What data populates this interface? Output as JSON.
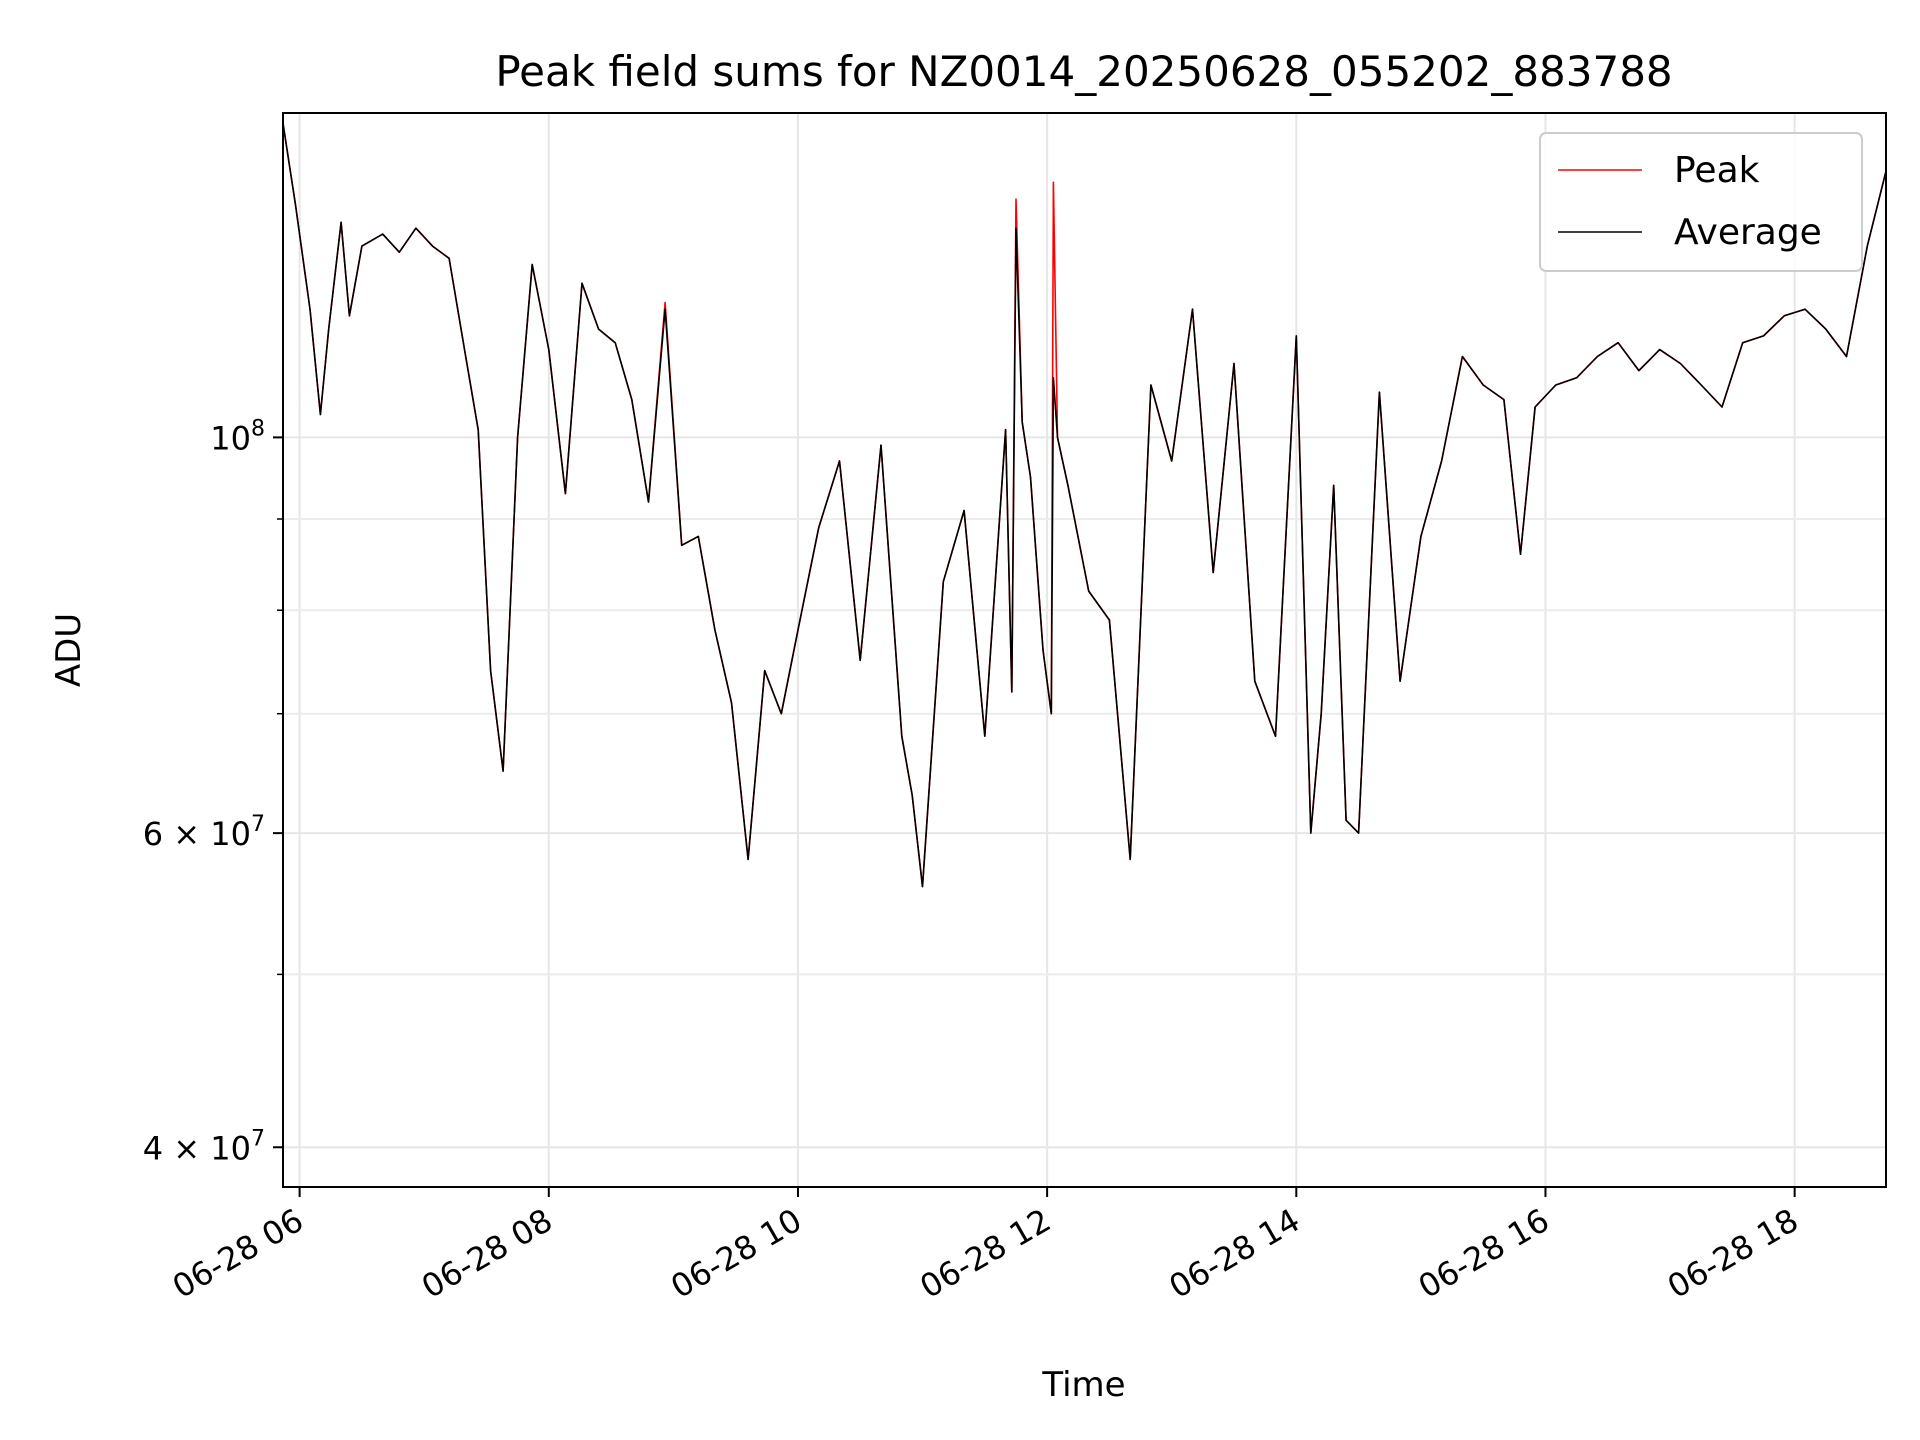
{
  "chart_data": {
    "type": "line",
    "title": "Peak field sums for NZ0014_20250628_055202_883788",
    "xlabel": "Time",
    "ylabel": "ADU",
    "yscale": "log",
    "ylim": [
      38000000,
      152000000
    ],
    "xlim": [
      "2025-06-28 05:52",
      "2025-06-28 18:44"
    ],
    "grid": true,
    "legend_position": "upper right",
    "x_tick_labels": [
      "06-28 06",
      "06-28 08",
      "06-28 10",
      "06-28 12",
      "06-28 14",
      "06-28 16",
      "06-28 18"
    ],
    "y_major_tick_labels": [
      {
        "base": "10",
        "exp": "8"
      },
      {
        "base": "6 × 10",
        "exp": "7"
      },
      {
        "base": "4 × 10",
        "exp": "7"
      }
    ],
    "x": [
      "2025-06-28 05:52",
      "2025-06-28 05:58",
      "2025-06-28 06:05",
      "2025-06-28 06:10",
      "2025-06-28 06:14",
      "2025-06-28 06:20",
      "2025-06-28 06:24",
      "2025-06-28 06:30",
      "2025-06-28 06:40",
      "2025-06-28 06:48",
      "2025-06-28 06:56",
      "2025-06-28 07:04",
      "2025-06-28 07:12",
      "2025-06-28 07:20",
      "2025-06-28 07:26",
      "2025-06-28 07:32",
      "2025-06-28 07:38",
      "2025-06-28 07:45",
      "2025-06-28 07:52",
      "2025-06-28 08:00",
      "2025-06-28 08:08",
      "2025-06-28 08:16",
      "2025-06-28 08:24",
      "2025-06-28 08:32",
      "2025-06-28 08:40",
      "2025-06-28 08:48",
      "2025-06-28 08:56",
      "2025-06-28 09:04",
      "2025-06-28 09:12",
      "2025-06-28 09:20",
      "2025-06-28 09:28",
      "2025-06-28 09:36",
      "2025-06-28 09:44",
      "2025-06-28 09:52",
      "2025-06-28 10:00",
      "2025-06-28 10:10",
      "2025-06-28 10:20",
      "2025-06-28 10:30",
      "2025-06-28 10:40",
      "2025-06-28 10:50",
      "2025-06-28 10:55",
      "2025-06-28 11:00",
      "2025-06-28 11:10",
      "2025-06-28 11:20",
      "2025-06-28 11:30",
      "2025-06-28 11:40",
      "2025-06-28 11:43",
      "2025-06-28 11:45",
      "2025-06-28 11:48",
      "2025-06-28 11:52",
      "2025-06-28 11:58",
      "2025-06-28 12:02",
      "2025-06-28 12:03",
      "2025-06-28 12:05",
      "2025-06-28 12:10",
      "2025-06-28 12:20",
      "2025-06-28 12:30",
      "2025-06-28 12:40",
      "2025-06-28 12:50",
      "2025-06-28 13:00",
      "2025-06-28 13:10",
      "2025-06-28 13:20",
      "2025-06-28 13:30",
      "2025-06-28 13:40",
      "2025-06-28 13:50",
      "2025-06-28 14:00",
      "2025-06-28 14:07",
      "2025-06-28 14:12",
      "2025-06-28 14:18",
      "2025-06-28 14:24",
      "2025-06-28 14:30",
      "2025-06-28 14:40",
      "2025-06-28 14:50",
      "2025-06-28 15:00",
      "2025-06-28 15:10",
      "2025-06-28 15:20",
      "2025-06-28 15:30",
      "2025-06-28 15:40",
      "2025-06-28 15:48",
      "2025-06-28 15:55",
      "2025-06-28 16:05",
      "2025-06-28 16:15",
      "2025-06-28 16:25",
      "2025-06-28 16:35",
      "2025-06-28 16:45",
      "2025-06-28 16:55",
      "2025-06-28 17:05",
      "2025-06-28 17:15",
      "2025-06-28 17:25",
      "2025-06-28 17:35",
      "2025-06-28 17:45",
      "2025-06-28 17:55",
      "2025-06-28 18:05",
      "2025-06-28 18:15",
      "2025-06-28 18:25",
      "2025-06-28 18:35",
      "2025-06-28 18:44"
    ],
    "series": [
      {
        "name": "Peak",
        "color": "#ff0000",
        "values": [
          150000000,
          135000000,
          118000000,
          103000000,
          115000000,
          132000000,
          117000000,
          128000000,
          130000000,
          127000000,
          131000000,
          128000000,
          126000000,
          111000000,
          101000000,
          74000000,
          65000000,
          100000000,
          125000000,
          112000000,
          93000000,
          122000000,
          115000000,
          113000000,
          105000000,
          92000000,
          119000000,
          87000000,
          88000000,
          78000000,
          71000000,
          58000000,
          74000000,
          70000000,
          78000000,
          89000000,
          97000000,
          75000000,
          99000000,
          68000000,
          63000000,
          56000000,
          83000000,
          91000000,
          68000000,
          101000000,
          72000000,
          136000000,
          102000000,
          95000000,
          76000000,
          70000000,
          139000000,
          100000000,
          94000000,
          82000000,
          79000000,
          58000000,
          107000000,
          97000000,
          118000000,
          84000000,
          110000000,
          73000000,
          68000000,
          114000000,
          60000000,
          70000000,
          94000000,
          61000000,
          60000000,
          106000000,
          73000000,
          88000000,
          97000000,
          111000000,
          107000000,
          105000000,
          86000000,
          104000000,
          107000000,
          108000000,
          111000000,
          113000000,
          109000000,
          112000000,
          110000000,
          107000000,
          104000000,
          113000000,
          114000000,
          117000000,
          118000000,
          115000000,
          111000000,
          128000000,
          141000000
        ]
      },
      {
        "name": "Average",
        "color": "#000000",
        "values": [
          150000000,
          135000000,
          118000000,
          103000000,
          115000000,
          132000000,
          117000000,
          128000000,
          130000000,
          127000000,
          131000000,
          128000000,
          126000000,
          111000000,
          101000000,
          74000000,
          65000000,
          100000000,
          125000000,
          112000000,
          93000000,
          122000000,
          115000000,
          113000000,
          105000000,
          92000000,
          118000000,
          87000000,
          88000000,
          78000000,
          71000000,
          58000000,
          74000000,
          70000000,
          78000000,
          89000000,
          97000000,
          75000000,
          99000000,
          68000000,
          63000000,
          56000000,
          83000000,
          91000000,
          68000000,
          101000000,
          72000000,
          131000000,
          102000000,
          95000000,
          76000000,
          70000000,
          108000000,
          100000000,
          94000000,
          82000000,
          79000000,
          58000000,
          107000000,
          97000000,
          118000000,
          84000000,
          110000000,
          73000000,
          68000000,
          114000000,
          60000000,
          70000000,
          94000000,
          61000000,
          60000000,
          106000000,
          73000000,
          88000000,
          97000000,
          111000000,
          107000000,
          105000000,
          86000000,
          104000000,
          107000000,
          108000000,
          111000000,
          113000000,
          109000000,
          112000000,
          110000000,
          107000000,
          104000000,
          113000000,
          114000000,
          117000000,
          118000000,
          115000000,
          111000000,
          128000000,
          141000000
        ]
      }
    ]
  }
}
